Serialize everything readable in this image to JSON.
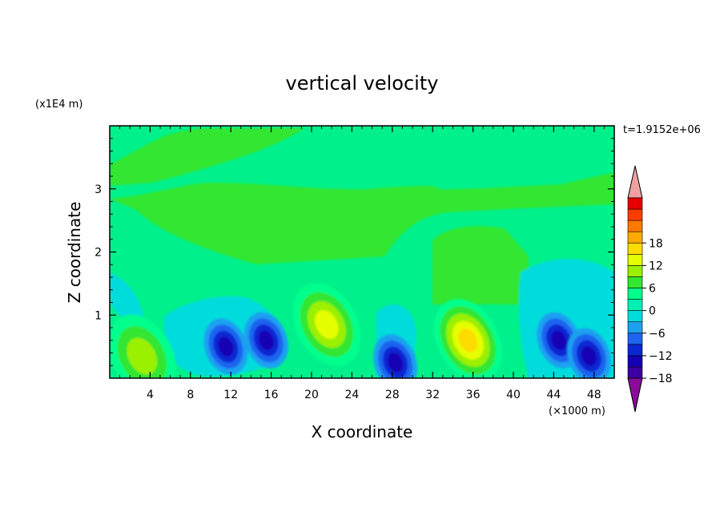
{
  "chart_data": {
    "type": "heatmap",
    "title": "vertical velocity",
    "xlabel": "X coordinate",
    "ylabel": "Z coordinate",
    "x_unit": "(×1000 m)",
    "y_unit": "(x1E4 m)",
    "time_label": "t=1.9152e+06",
    "x_range": [
      0,
      50
    ],
    "y_range": [
      0,
      4
    ],
    "x_ticks": [
      4,
      8,
      12,
      16,
      20,
      24,
      28,
      32,
      36,
      40,
      44,
      48
    ],
    "x_tick_labels": [
      "4",
      "8",
      "12",
      "16",
      "20",
      "24",
      "28",
      "32",
      "36",
      "40",
      "44",
      "48"
    ],
    "y_ticks": [
      1,
      2,
      3
    ],
    "y_tick_labels": [
      "1",
      "2",
      "3"
    ],
    "colorbar": {
      "range": [
        -21,
        21
      ],
      "step": 3,
      "tick_values": [
        -18,
        -12,
        -6,
        0,
        6,
        12,
        18
      ],
      "tick_labels": [
        "−18",
        "−12",
        "−6",
        "0",
        "6",
        "12",
        "18"
      ],
      "colors": [
        "#8c0a9c",
        "#3c00a0",
        "#1400b4",
        "#0a28d2",
        "#1e64f0",
        "#1ea0f0",
        "#00dcdc",
        "#00f0b4",
        "#00ff8c",
        "#32e632",
        "#9bf000",
        "#e6ff00",
        "#ffdc00",
        "#ffaa00",
        "#ff7800",
        "#ff3c00",
        "#e60000",
        "#f0a0a0"
      ]
    },
    "features": [
      {
        "kind": "updraft",
        "x": 3.2,
        "z": 0.35,
        "peak": 9
      },
      {
        "kind": "downdraft",
        "x": 11.5,
        "z": 0.5,
        "peak": -12
      },
      {
        "kind": "downdraft",
        "x": 15.5,
        "z": 0.6,
        "peak": -12
      },
      {
        "kind": "updraft",
        "x": 21.5,
        "z": 0.85,
        "peak": 12
      },
      {
        "kind": "downdraft",
        "x": 28.3,
        "z": 0.25,
        "peak": -12
      },
      {
        "kind": "updraft",
        "x": 35.5,
        "z": 0.6,
        "peak": 15
      },
      {
        "kind": "downdraft",
        "x": 44.5,
        "z": 0.6,
        "peak": -12
      },
      {
        "kind": "downdraft",
        "x": 47.5,
        "z": 0.35,
        "peak": -12
      }
    ]
  }
}
